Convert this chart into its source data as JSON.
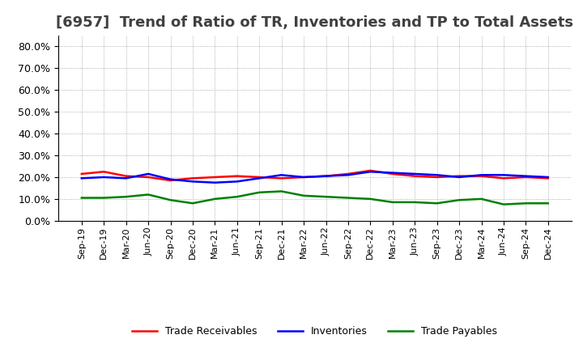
{
  "title": "[6957]  Trend of Ratio of TR, Inventories and TP to Total Assets",
  "x_labels": [
    "Sep-19",
    "Dec-19",
    "Mar-20",
    "Jun-20",
    "Sep-20",
    "Dec-20",
    "Mar-21",
    "Jun-21",
    "Sep-21",
    "Dec-21",
    "Mar-22",
    "Jun-22",
    "Sep-22",
    "Dec-22",
    "Mar-23",
    "Jun-23",
    "Sep-23",
    "Dec-23",
    "Mar-24",
    "Jun-24",
    "Sep-24",
    "Dec-24"
  ],
  "trade_receivables": [
    0.215,
    0.225,
    0.205,
    0.2,
    0.185,
    0.195,
    0.2,
    0.205,
    0.2,
    0.195,
    0.2,
    0.205,
    0.215,
    0.23,
    0.215,
    0.205,
    0.2,
    0.205,
    0.205,
    0.195,
    0.2,
    0.195
  ],
  "inventories": [
    0.195,
    0.2,
    0.195,
    0.215,
    0.19,
    0.18,
    0.175,
    0.18,
    0.195,
    0.21,
    0.2,
    0.205,
    0.21,
    0.225,
    0.22,
    0.215,
    0.21,
    0.2,
    0.21,
    0.21,
    0.205,
    0.2
  ],
  "trade_payables": [
    0.105,
    0.105,
    0.11,
    0.12,
    0.095,
    0.08,
    0.1,
    0.11,
    0.13,
    0.135,
    0.115,
    0.11,
    0.105,
    0.1,
    0.085,
    0.085,
    0.08,
    0.095,
    0.1,
    0.075,
    0.08,
    0.08
  ],
  "tr_color": "#ff0000",
  "inv_color": "#0000ff",
  "tp_color": "#008000",
  "ylim": [
    0.0,
    0.85
  ],
  "yticks": [
    0.0,
    0.1,
    0.2,
    0.3,
    0.4,
    0.5,
    0.6,
    0.7,
    0.8
  ],
  "background_color": "#ffffff",
  "grid_color": "#999999",
  "title_color": "#404040",
  "legend_tr": "Trade Receivables",
  "legend_inv": "Inventories",
  "legend_tp": "Trade Payables",
  "title_fontsize": 13,
  "tick_fontsize": 9,
  "xtick_fontsize": 8
}
